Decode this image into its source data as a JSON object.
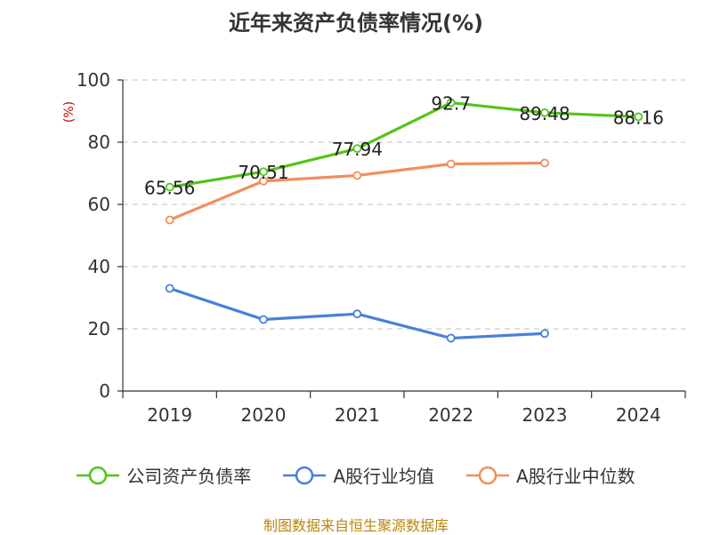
{
  "title": "近年来资产负债率情况(%)",
  "source": "制图数据来自恒生聚源数据库",
  "chart_data": {
    "type": "line",
    "title": "近年来资产负债率情况(%)",
    "ylabel": "(%)",
    "xlabel": "",
    "ylim": [
      0,
      100
    ],
    "yticks": [
      0,
      20,
      40,
      60,
      80,
      100
    ],
    "grid": true,
    "legend_position": "bottom",
    "categories": [
      "2019",
      "2020",
      "2021",
      "2022",
      "2023",
      "2024"
    ],
    "series": [
      {
        "name": "公司资产负债率",
        "color": "#52c41a",
        "values": [
          65.56,
          70.51,
          77.94,
          92.7,
          89.48,
          88.16
        ],
        "labels": [
          "65.56",
          "70.51",
          "77.94",
          "92.7",
          "89.48",
          "88.16"
        ]
      },
      {
        "name": "A股行业均值",
        "color": "#4a7fdb",
        "values": [
          33,
          23,
          24.8,
          17,
          18.5,
          null
        ]
      },
      {
        "name": "A股行业中位数",
        "color": "#f28e5b",
        "values": [
          55,
          67.5,
          69.3,
          73,
          73.3,
          null
        ]
      }
    ]
  }
}
